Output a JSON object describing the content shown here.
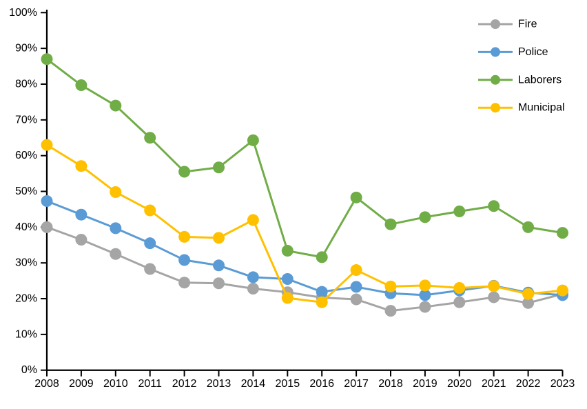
{
  "chart_data": {
    "type": "line",
    "title": "",
    "xlabel": "",
    "ylabel": "",
    "x": [
      2008,
      2009,
      2010,
      2011,
      2012,
      2013,
      2014,
      2015,
      2016,
      2017,
      2018,
      2019,
      2020,
      2021,
      2022,
      2023
    ],
    "xtick_labels": [
      "2008",
      "2009",
      "2010",
      "2011",
      "2012",
      "2013",
      "2014",
      "2015",
      "2016",
      "2017",
      "2018",
      "2019",
      "2020",
      "2021",
      "2022",
      "2023"
    ],
    "ytick_labels": [
      "0%",
      "10%",
      "20%",
      "30%",
      "40%",
      "50%",
      "60%",
      "70%",
      "80%",
      "90%",
      "100%"
    ],
    "ylim": [
      0,
      100
    ],
    "ytick_step": 10,
    "grid": false,
    "legend_position": "top-right",
    "axis_color": "#000000",
    "background_color": "#FFFFFF",
    "series": [
      {
        "name": "Fire",
        "color": "#A5A5A5",
        "values": [
          40.0,
          36.5,
          32.5,
          28.3,
          24.5,
          24.3,
          22.8,
          21.8,
          20.3,
          19.8,
          16.6,
          17.7,
          19.0,
          20.4,
          18.8,
          21.3
        ]
      },
      {
        "name": "Police",
        "color": "#5B9BD5",
        "values": [
          47.3,
          43.5,
          39.7,
          35.5,
          30.8,
          29.3,
          26.0,
          25.5,
          21.9,
          23.3,
          21.5,
          21.0,
          22.3,
          23.6,
          21.7,
          21.0
        ]
      },
      {
        "name": "Laborers",
        "color": "#70AD47",
        "values": [
          87.0,
          79.7,
          74.0,
          65.0,
          55.5,
          56.7,
          64.3,
          33.4,
          31.6,
          48.3,
          40.8,
          42.8,
          44.4,
          45.9,
          40.0,
          38.4
        ]
      },
      {
        "name": "Municipal",
        "color": "#FFC000",
        "values": [
          63.0,
          57.1,
          49.8,
          44.7,
          37.3,
          37.0,
          42.0,
          20.2,
          19.0,
          28.0,
          23.4,
          23.7,
          23.0,
          23.5,
          21.3,
          22.3
        ]
      }
    ]
  }
}
